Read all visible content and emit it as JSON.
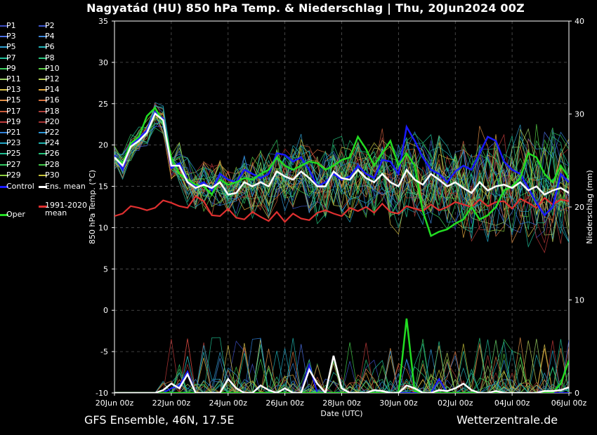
{
  "title": "Nagyatád  (HU)  850 hPa Temp. & Niederschlag | Thu, 20Jun2024 00Z",
  "footer": {
    "model": "GFS Ensemble, 46N, 17.5E",
    "source": "Wetterzentrale.de"
  },
  "legend": {
    "members": [
      {
        "label": "P1",
        "color": "#3b4cc0"
      },
      {
        "label": "P2",
        "color": "#3f58d0"
      },
      {
        "label": "P3",
        "color": "#4a6fe3"
      },
      {
        "label": "P4",
        "color": "#3d85d8"
      },
      {
        "label": "P5",
        "color": "#2f9fd0"
      },
      {
        "label": "P6",
        "color": "#21b3b8"
      },
      {
        "label": "P7",
        "color": "#1fbf9a"
      },
      {
        "label": "P8",
        "color": "#27c57c"
      },
      {
        "label": "P9",
        "color": "#3acb5e"
      },
      {
        "label": "P10",
        "color": "#58cf44"
      },
      {
        "label": "P11",
        "color": "#9ed466"
      },
      {
        "label": "P12",
        "color": "#b9cf58"
      },
      {
        "label": "P13",
        "color": "#d8c24a"
      },
      {
        "label": "P14",
        "color": "#e2a93e"
      },
      {
        "label": "P15",
        "color": "#e08f46"
      },
      {
        "label": "P16",
        "color": "#d8733f"
      },
      {
        "label": "P17",
        "color": "#c85a3a"
      },
      {
        "label": "P18",
        "color": "#b0403a"
      },
      {
        "label": "P19",
        "color": "#c03a3a"
      },
      {
        "label": "P20",
        "color": "#a83232"
      },
      {
        "label": "P21",
        "color": "#2f7fd8"
      },
      {
        "label": "P22",
        "color": "#2a95d8"
      },
      {
        "label": "P23",
        "color": "#22a7c8"
      },
      {
        "label": "P24",
        "color": "#1fb5b0"
      },
      {
        "label": "P25",
        "color": "#20bf92"
      },
      {
        "label": "P26",
        "color": "#24c47a"
      },
      {
        "label": "P27",
        "color": "#30c860"
      },
      {
        "label": "P28",
        "color": "#42cb4a"
      },
      {
        "label": "P29",
        "color": "#8ccf3e"
      },
      {
        "label": "P30",
        "color": "#c6c238"
      }
    ],
    "control": {
      "label": "Control",
      "color": "#1a1aff"
    },
    "ens_mean": {
      "label": "Ens. mean",
      "color": "#ffffff"
    },
    "oper": {
      "label": "Oper",
      "color": "#22dd22"
    },
    "climate": {
      "label": "1991-2020\nmean",
      "color": "#e03030"
    }
  },
  "chart_data": {
    "type": "line",
    "xlabel": "Date (UTC)",
    "ylabel": "850 hPa Temp. (°C)",
    "y2label": "Niederschlag (mm)",
    "ylim": [
      -10,
      35
    ],
    "y2lim": [
      0,
      40
    ],
    "xlim_hours": [
      0,
      384
    ],
    "x_tick_labels": [
      "20Jun 00z",
      "22Jun 00z",
      "24Jun 00z",
      "26Jun 00z",
      "28Jun 00z",
      "30Jun 00z",
      "02Jul 00z",
      "04Jul 00z",
      "06Jul 00z"
    ],
    "y_ticks": [
      -10,
      -5,
      0,
      5,
      10,
      15,
      20,
      25,
      30,
      35
    ],
    "y2_ticks": [
      0,
      10,
      20,
      30,
      40
    ],
    "grid": true,
    "temp_series": {
      "ens_mean": [
        18.5,
        17.5,
        19.8,
        20.5,
        21.5,
        23.8,
        23.0,
        17.5,
        17.5,
        15.5,
        14.8,
        15.2,
        14.8,
        15.5,
        14.0,
        14.2,
        15.5,
        15.0,
        15.5,
        15.0,
        16.8,
        16.2,
        15.8,
        16.8,
        16.0,
        15.0,
        15.0,
        16.8,
        16.0,
        15.8,
        17.0,
        16.0,
        15.5,
        16.5,
        15.5,
        15.0,
        17.0,
        15.8,
        15.2,
        16.5,
        15.8,
        15.0,
        15.5,
        14.8,
        14.2,
        15.5,
        14.5,
        15.0,
        15.2,
        14.8,
        15.5,
        14.5,
        15.0,
        14.0,
        14.5,
        14.8,
        14.2
      ],
      "control": [
        18.8,
        17.0,
        20.0,
        20.8,
        21.8,
        24.0,
        23.2,
        17.2,
        17.8,
        15.8,
        15.0,
        15.5,
        14.5,
        16.5,
        15.8,
        15.5,
        17.0,
        16.5,
        16.0,
        16.5,
        19.0,
        18.8,
        18.0,
        18.5,
        17.0,
        15.0,
        15.5,
        16.5,
        15.8,
        16.2,
        17.5,
        16.5,
        16.0,
        18.2,
        18.0,
        16.5,
        22.2,
        20.5,
        18.5,
        17.0,
        16.5,
        15.5,
        16.8,
        17.5,
        17.0,
        19.0,
        21.0,
        20.5,
        18.0,
        17.0,
        16.5,
        14.8,
        13.0,
        11.5,
        12.5,
        16.5,
        15.5
      ],
      "oper": [
        18.5,
        17.8,
        20.2,
        21.0,
        23.5,
        24.5,
        22.8,
        18.5,
        16.5,
        15.8,
        15.2,
        15.0,
        14.0,
        15.8,
        15.2,
        15.5,
        16.0,
        15.8,
        16.5,
        17.0,
        18.5,
        17.5,
        17.0,
        17.5,
        18.0,
        17.8,
        17.0,
        17.5,
        18.2,
        18.5,
        21.0,
        19.5,
        17.5,
        19.0,
        20.5,
        17.5,
        19.0,
        17.5,
        12.0,
        9.0,
        9.5,
        9.8,
        10.5,
        11.0,
        12.5,
        11.0,
        11.5,
        12.5,
        14.5,
        15.0,
        16.0,
        19.0,
        18.5,
        16.5,
        15.5,
        17.5,
        16.0
      ],
      "climate": [
        11.4,
        11.7,
        12.6,
        12.4,
        12.1,
        12.4,
        13.3,
        13.0,
        12.6,
        12.4,
        13.8,
        13.2,
        11.5,
        11.4,
        12.3,
        11.2,
        11.0,
        11.9,
        11.3,
        10.8,
        11.9,
        10.7,
        11.7,
        11.1,
        10.9,
        11.8,
        12.1,
        11.7,
        11.4,
        12.4,
        12.0,
        12.5,
        11.8,
        12.9,
        11.9,
        11.7,
        12.6,
        12.3,
        12.0,
        12.8,
        12.1,
        12.5,
        13.1,
        12.8,
        12.5,
        13.4,
        12.6,
        13.1,
        13.2,
        12.3,
        13.5,
        13.0,
        12.4,
        13.6,
        12.8,
        13.4,
        13.2
      ]
    },
    "precip_series": {
      "ens_mean": [
        0,
        0,
        0,
        0,
        0,
        0,
        0.3,
        1.0,
        0.5,
        2.0,
        0,
        0,
        0,
        0,
        1.5,
        0.5,
        0,
        0,
        0.8,
        0.3,
        0,
        0.5,
        0,
        0,
        2.5,
        1.0,
        0,
        4.0,
        0.5,
        0,
        0,
        0,
        0.3,
        0.2,
        0,
        0,
        0.8,
        0.5,
        0,
        0,
        0.3,
        0.2,
        0.5,
        1.0,
        0.3,
        0,
        0,
        0.2,
        0,
        0,
        0,
        0,
        0,
        0.2,
        0.2,
        0.3,
        0.6
      ],
      "control": [
        0,
        0,
        0,
        0,
        0,
        0,
        0,
        0.5,
        0.8,
        2.3,
        0,
        0,
        0,
        0,
        0,
        0,
        0,
        0,
        0,
        0,
        0,
        0,
        0,
        0,
        3.0,
        0,
        0,
        0,
        0,
        0,
        0,
        0,
        0,
        0,
        0,
        0,
        0,
        0,
        0,
        0,
        1.5,
        0,
        0,
        0,
        0,
        0,
        0,
        0,
        0,
        0,
        0,
        0,
        0,
        0,
        0,
        0,
        0
      ],
      "oper": [
        0,
        0,
        0,
        0,
        0,
        0,
        0,
        0,
        0,
        0,
        0,
        0,
        0,
        0,
        0,
        0,
        0,
        0,
        0,
        0,
        0,
        0,
        0,
        0,
        0,
        0,
        0,
        0,
        0,
        0,
        0,
        0,
        0,
        0,
        0,
        0,
        8.0,
        0.2,
        0,
        0,
        0,
        0,
        0,
        0,
        0,
        0,
        0,
        0,
        0,
        0,
        0,
        0,
        0,
        0,
        0,
        1.0,
        3.5
      ]
    }
  }
}
